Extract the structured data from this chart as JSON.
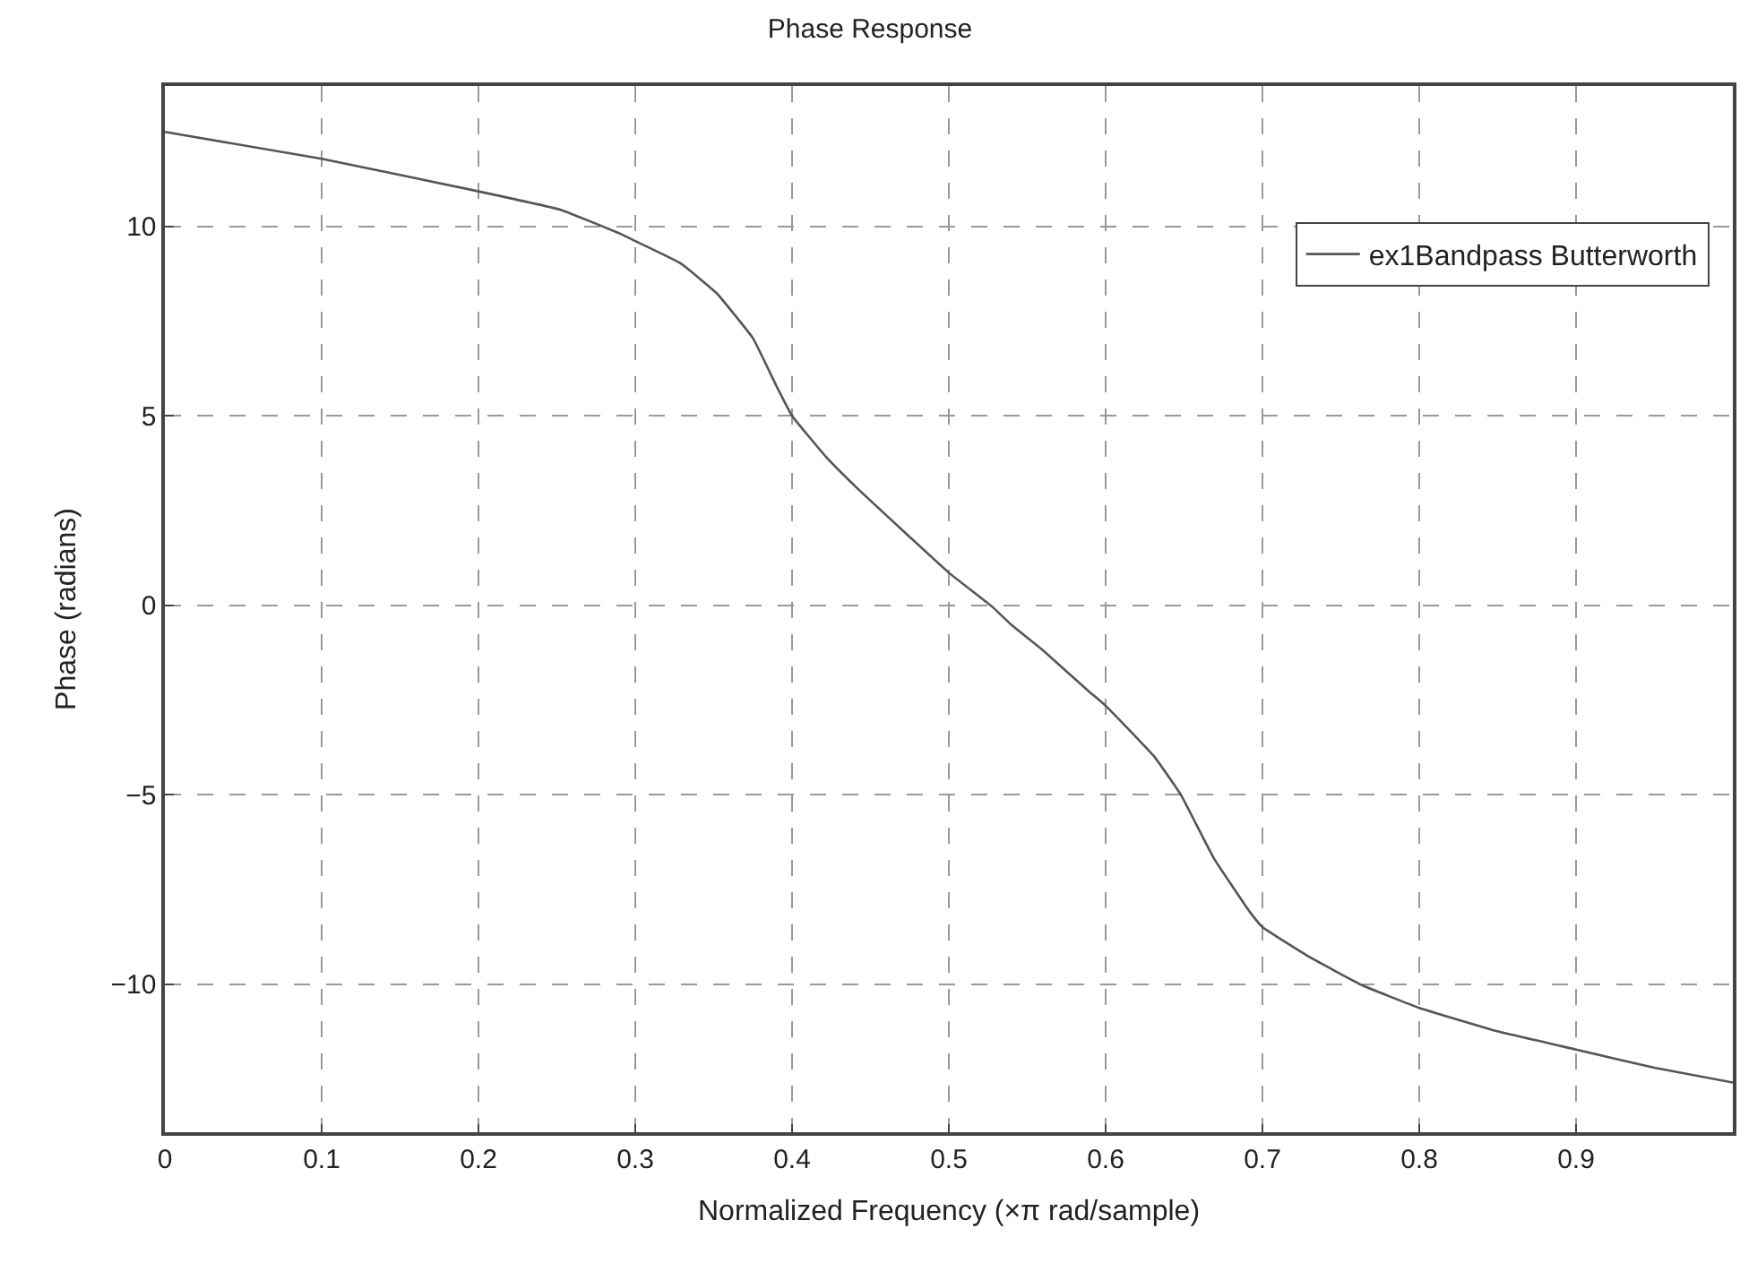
{
  "chart_data": {
    "type": "line",
    "title": "Phase Response",
    "xlabel": "Normalized Frequency (×π rad/sample)",
    "ylabel": "Phase (radians)",
    "xlim": [
      0,
      1
    ],
    "ylim": [
      -13.9,
      13.7
    ],
    "xticks": [
      0,
      0.1,
      0.2,
      0.3,
      0.4,
      0.5,
      0.6,
      0.7,
      0.8,
      0.9
    ],
    "yticks": [
      -10,
      -5,
      0,
      5,
      10
    ],
    "grid": true,
    "legend": "top right",
    "line_style": "solid",
    "series": [
      {
        "name": "ex1Bandpass Butterworth",
        "color": "#555555",
        "x": [
          0,
          0.1,
          0.2,
          0.252,
          0.29,
          0.3,
          0.329,
          0.352,
          0.375,
          0.39,
          0.4,
          0.422,
          0.441,
          0.5,
          0.528,
          0.54,
          0.559,
          0.589,
          0.6,
          0.631,
          0.648,
          0.669,
          0.692,
          0.7,
          0.73,
          0.764,
          0.8,
          0.851,
          0.9,
          0.95,
          1.0
        ],
        "values": [
          12.49,
          11.78,
          10.92,
          10.44,
          9.81,
          9.61,
          9.02,
          8.23,
          7.05,
          5.79,
          5.0,
          3.9,
          3.11,
          0.86,
          -0.05,
          -0.52,
          -1.15,
          -2.26,
          -2.65,
          -3.99,
          -5.0,
          -6.67,
          -8.09,
          -8.49,
          -9.28,
          -10.03,
          -10.62,
          -11.25,
          -11.72,
          -12.2,
          -12.59
        ]
      }
    ]
  }
}
